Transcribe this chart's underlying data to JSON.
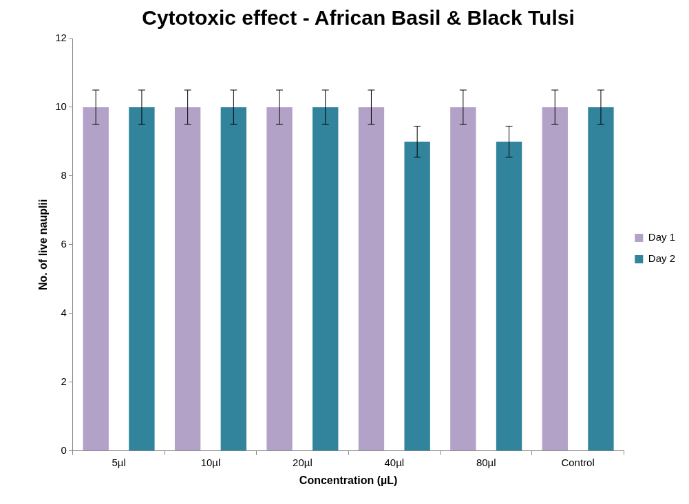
{
  "chart_data": {
    "type": "bar",
    "title": "Cytotoxic effect - African Basil & Black Tulsi",
    "xlabel": "Concentration (µL)",
    "ylabel": "No. of live nauplii",
    "categories": [
      "5µl",
      "10µl",
      "20µl",
      "40µl",
      "80µl",
      "Control"
    ],
    "series": [
      {
        "name": "Day 1",
        "color": "#b3a2c7",
        "values": [
          10,
          10,
          10,
          10,
          10,
          10
        ],
        "errors": [
          0.5,
          0.5,
          0.5,
          0.5,
          0.5,
          0.5
        ]
      },
      {
        "name": "Day 2",
        "color": "#31849b",
        "values": [
          10,
          10,
          10,
          9,
          9,
          10
        ],
        "errors": [
          0.5,
          0.5,
          0.5,
          0.45,
          0.45,
          0.5
        ]
      }
    ],
    "ylim": [
      0,
      12
    ],
    "yticks": [
      0,
      2,
      4,
      6,
      8,
      10,
      12
    ],
    "grid": false,
    "legend": "right"
  }
}
